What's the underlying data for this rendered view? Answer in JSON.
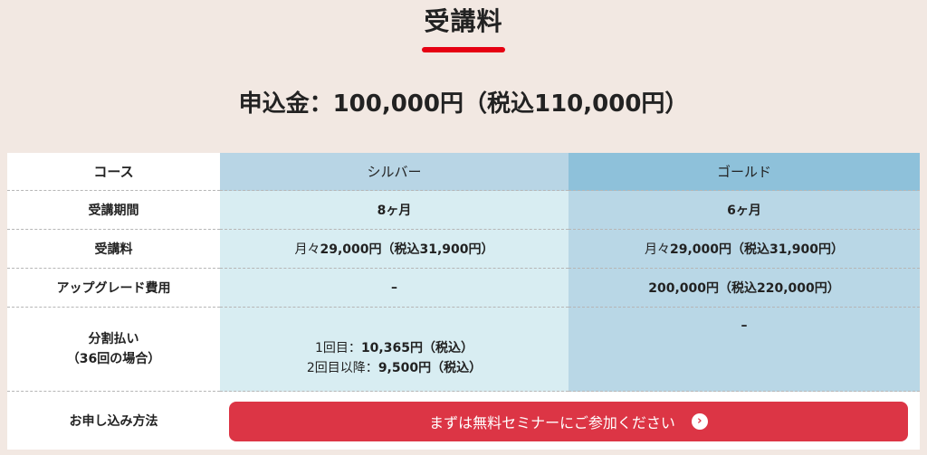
{
  "section_title": "受講料",
  "application_fee": "申込金：100,000円（税込110,000円）",
  "table": {
    "header": {
      "course_label": "コース",
      "silver": "シルバー",
      "gold": "ゴールド"
    },
    "rows": {
      "period": {
        "label": "受講期間",
        "silver": "8ヶ月",
        "gold": "6ヶ月"
      },
      "tuition": {
        "label": "受講料",
        "silver_prefix": "月々",
        "silver_value": "29,000円（税込31,900円）",
        "gold_prefix": "月々",
        "gold_value": "29,000円（税込31,900円）"
      },
      "upgrade": {
        "label": "アップグレード費用",
        "silver": "–",
        "gold": "200,000円（税込220,000円）"
      },
      "installment": {
        "label_line1": "分割払い",
        "label_line2": "（36回の場合）",
        "silver_line1_prefix": "1回目：",
        "silver_line1_value": "10,365円（税込）",
        "silver_line2_prefix": "2回目以降：",
        "silver_line2_value": "9,500円（税込）",
        "gold": "–"
      },
      "apply": {
        "label": "お申し込み方法"
      }
    }
  },
  "cta": {
    "label": "まずは無料セミナーにご参加ください",
    "icon": "chevron-right-circle-icon"
  },
  "colors": {
    "accent_red": "#e60012",
    "button_red": "#dc3545",
    "silver_header": "#b8d5e5",
    "gold_header": "#8ec1da"
  }
}
